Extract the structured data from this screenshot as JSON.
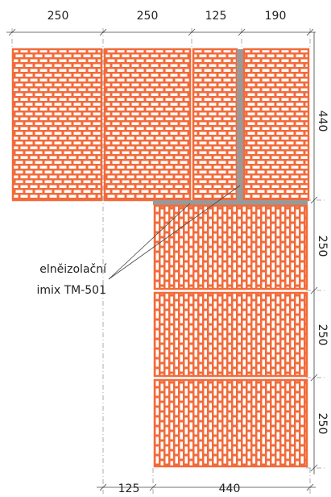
{
  "dimensions": {
    "top": [
      250,
      250,
      125,
      190
    ],
    "right": [
      440,
      250,
      250,
      250
    ],
    "bottom": [
      125,
      440
    ]
  },
  "annotation": {
    "lines": [
      "elněizolační",
      "imix TM-501"
    ]
  }
}
